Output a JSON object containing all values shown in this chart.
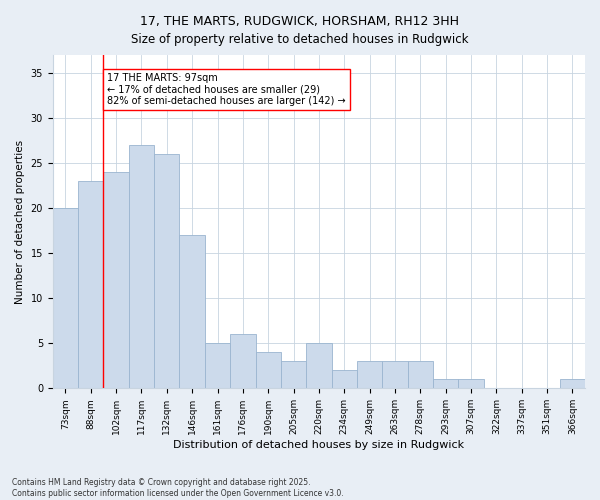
{
  "title": "17, THE MARTS, RUDGWICK, HORSHAM, RH12 3HH",
  "subtitle": "Size of property relative to detached houses in Rudgwick",
  "xlabel": "Distribution of detached houses by size in Rudgwick",
  "ylabel": "Number of detached properties",
  "categories": [
    "73sqm",
    "88sqm",
    "102sqm",
    "117sqm",
    "132sqm",
    "146sqm",
    "161sqm",
    "176sqm",
    "190sqm",
    "205sqm",
    "220sqm",
    "234sqm",
    "249sqm",
    "263sqm",
    "278sqm",
    "293sqm",
    "307sqm",
    "322sqm",
    "337sqm",
    "351sqm",
    "366sqm"
  ],
  "values": [
    20,
    23,
    24,
    27,
    26,
    17,
    5,
    6,
    4,
    3,
    5,
    2,
    3,
    3,
    3,
    1,
    1,
    0,
    0,
    0,
    1
  ],
  "bar_color": "#ccdaeb",
  "bar_edge_color": "#9ab5d0",
  "ylim": [
    0,
    37
  ],
  "yticks": [
    0,
    5,
    10,
    15,
    20,
    25,
    30,
    35
  ],
  "annotation_text_line1": "17 THE MARTS: 97sqm",
  "annotation_text_line2": "← 17% of detached houses are smaller (29)",
  "annotation_text_line3": "82% of semi-detached houses are larger (142) →",
  "red_line_x": 1.5,
  "footer_line1": "Contains HM Land Registry data © Crown copyright and database right 2025.",
  "footer_line2": "Contains public sector information licensed under the Open Government Licence v3.0.",
  "background_color": "#e8eef5",
  "plot_background_color": "#ffffff",
  "grid_color": "#c8d4e0",
  "title_fontsize": 9,
  "subtitle_fontsize": 8.5,
  "axis_label_fontsize": 7.5,
  "tick_fontsize": 6.5,
  "annotation_fontsize": 7,
  "footer_fontsize": 5.5
}
